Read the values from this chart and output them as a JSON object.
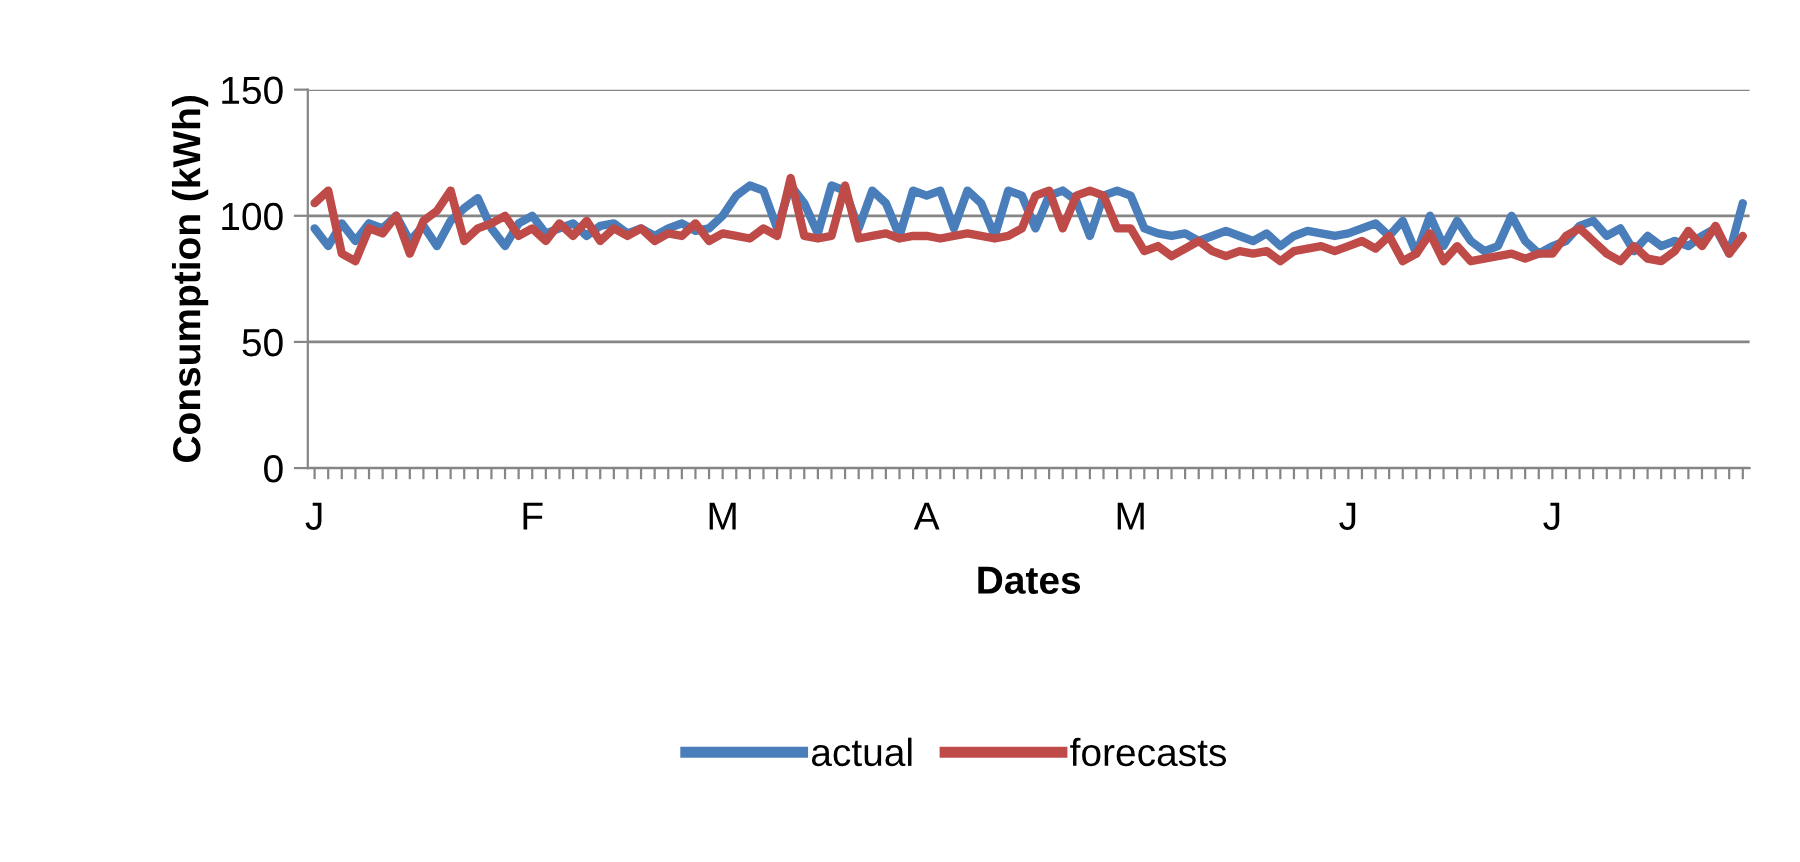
{
  "chart_data": {
    "type": "line",
    "xlabel": "Dates",
    "ylabel": "Consumption (kWh)",
    "categories": [
      "J",
      null,
      null,
      null,
      null,
      null,
      null,
      null,
      null,
      null,
      null,
      null,
      null,
      null,
      null,
      null,
      "F",
      null,
      null,
      null,
      null,
      null,
      null,
      null,
      null,
      null,
      null,
      null,
      null,
      null,
      "M",
      null,
      null,
      null,
      null,
      null,
      null,
      null,
      null,
      null,
      null,
      null,
      null,
      null,
      null,
      "A",
      null,
      null,
      null,
      null,
      null,
      null,
      null,
      null,
      null,
      null,
      null,
      null,
      null,
      null,
      "M",
      null,
      null,
      null,
      null,
      null,
      null,
      null,
      null,
      null,
      null,
      null,
      null,
      null,
      null,
      null,
      "J",
      null,
      null,
      null,
      null,
      null,
      null,
      null,
      null,
      null,
      null,
      null,
      null,
      null,
      null,
      "J",
      null,
      null,
      null,
      null,
      null,
      null,
      null,
      null,
      null,
      null,
      null,
      null,
      null,
      null
    ],
    "series": [
      {
        "name": "actual",
        "color": "#4a7ebb",
        "values": [
          95,
          88,
          97,
          90,
          97,
          95,
          100,
          90,
          96,
          88,
          98,
          103,
          107,
          95,
          88,
          97,
          100,
          93,
          95,
          97,
          92,
          96,
          97,
          93,
          95,
          92,
          95,
          97,
          94,
          95,
          100,
          108,
          112,
          110,
          95,
          112,
          105,
          93,
          112,
          110,
          95,
          110,
          105,
          92,
          110,
          108,
          110,
          95,
          110,
          105,
          92,
          110,
          108,
          95,
          108,
          110,
          106,
          92,
          108,
          110,
          108,
          95,
          93,
          92,
          93,
          90,
          92,
          94,
          92,
          90,
          93,
          88,
          92,
          94,
          93,
          92,
          93,
          95,
          97,
          92,
          98,
          85,
          100,
          88,
          98,
          90,
          86,
          88,
          100,
          90,
          85,
          88,
          90,
          96,
          98,
          92,
          95,
          86,
          92,
          88,
          90,
          88,
          92,
          95,
          85,
          105
        ]
      },
      {
        "name": "forecasts",
        "color": "#be4b48",
        "values": [
          105,
          110,
          85,
          82,
          95,
          93,
          100,
          85,
          98,
          102,
          110,
          90,
          95,
          97,
          100,
          92,
          95,
          90,
          97,
          92,
          98,
          90,
          95,
          92,
          95,
          90,
          93,
          92,
          97,
          90,
          93,
          92,
          91,
          95,
          92,
          115,
          92,
          91,
          92,
          112,
          91,
          92,
          93,
          91,
          92,
          92,
          91,
          92,
          93,
          92,
          91,
          92,
          95,
          108,
          110,
          95,
          108,
          110,
          108,
          95,
          95,
          86,
          88,
          84,
          87,
          90,
          86,
          84,
          86,
          85,
          86,
          82,
          86,
          87,
          88,
          86,
          88,
          90,
          87,
          92,
          82,
          85,
          93,
          82,
          88,
          82,
          83,
          84,
          85,
          83,
          85,
          85,
          92,
          95,
          90,
          85,
          82,
          88,
          83,
          82,
          86,
          94,
          88,
          96,
          85,
          92
        ]
      }
    ],
    "ylim": [
      0,
      150
    ],
    "yticks": [
      0,
      50,
      100,
      150
    ],
    "grid": "y",
    "legend": "bottom",
    "line_style": "solid",
    "marker": "none"
  }
}
